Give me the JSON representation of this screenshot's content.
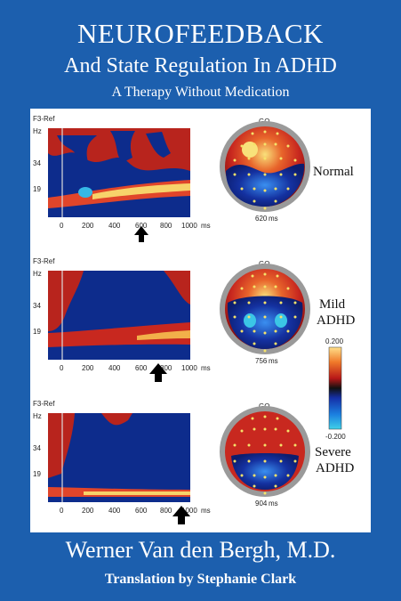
{
  "cover": {
    "title": "NEUROFEEDBACK",
    "subtitle": "And State Regulation In ADHD",
    "tagline": "A Therapy Without Medication",
    "author": "Werner Van den Bergh, M.D.",
    "translator": "Translation by Stephanie Clark"
  },
  "figure": {
    "channel_label": "F3-Ref",
    "y_unit": "Hz",
    "y_ticks": [
      "34",
      "19"
    ],
    "x_ticks": [
      "0",
      "200",
      "400",
      "600",
      "800",
      "1000"
    ],
    "x_unit": "ms",
    "go_label": "GO",
    "panels": [
      {
        "condition_line1": "Normal",
        "condition_line2": "",
        "time_label": "620",
        "time_unit": "ms"
      },
      {
        "condition_line1": "Mild",
        "condition_line2": "ADHD",
        "time_label": "756",
        "time_unit": "ms"
      },
      {
        "condition_line1": "Severe",
        "condition_line2": "ADHD",
        "time_label": "904",
        "time_unit": "ms"
      }
    ],
    "colorbar": {
      "max": "0.200",
      "min": "-0.200"
    }
  }
}
